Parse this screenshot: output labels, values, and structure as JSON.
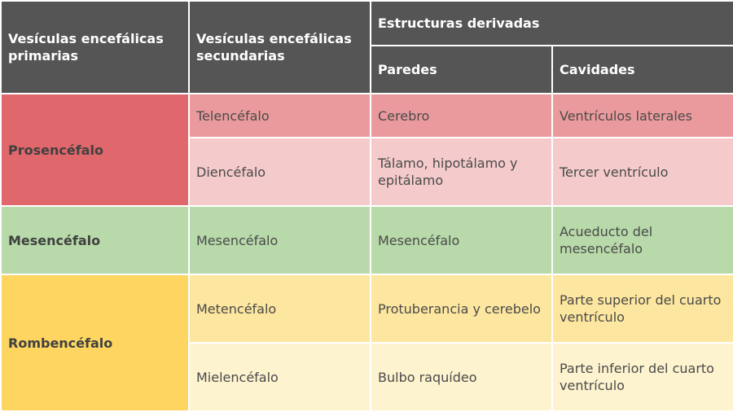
{
  "header": {
    "col1": "Vesículas encefálicas primarias",
    "col2": "Vesículas encefálicas secundarias",
    "derived": "Estructuras derivadas",
    "walls": "Paredes",
    "cavities": "Cavidades"
  },
  "rows": [
    {
      "primary": "Prosencéfalo",
      "secondary": [
        {
          "name": "Telencéfalo",
          "walls": "Cerebro",
          "cavities": "Ventrículos laterales"
        },
        {
          "name": "Diencéfalo",
          "walls": "Tálamo, hipotálamo y epitálamo",
          "cavities": "Tercer ventrículo"
        }
      ]
    },
    {
      "primary": "Mesencéfalo",
      "secondary": [
        {
          "name": "Mesencéfalo",
          "walls": "Mesencéfalo",
          "cavities": "Acueducto del mesencéfalo"
        }
      ]
    },
    {
      "primary": "Rombencéfalo",
      "secondary": [
        {
          "name": "Metencéfalo",
          "walls": "Protuberancia y cerebelo",
          "cavities": "Parte superior del cuarto ventrículo"
        },
        {
          "name": "Mielencéfalo",
          "walls": "Bulbo raquídeo",
          "cavities": "Parte inferior del cuarto ventrículo"
        }
      ]
    }
  ],
  "colors": {
    "header": "#555555",
    "prosencefalo": "#e0676b",
    "telencefalo": "#ea9a9c",
    "diencefalo": "#f4cacb",
    "mesencefalo": "#b8d9a9",
    "rombencefalo": "#fdd560",
    "metencefalo": "#fde69f",
    "mielencefalo": "#fef3cf"
  }
}
